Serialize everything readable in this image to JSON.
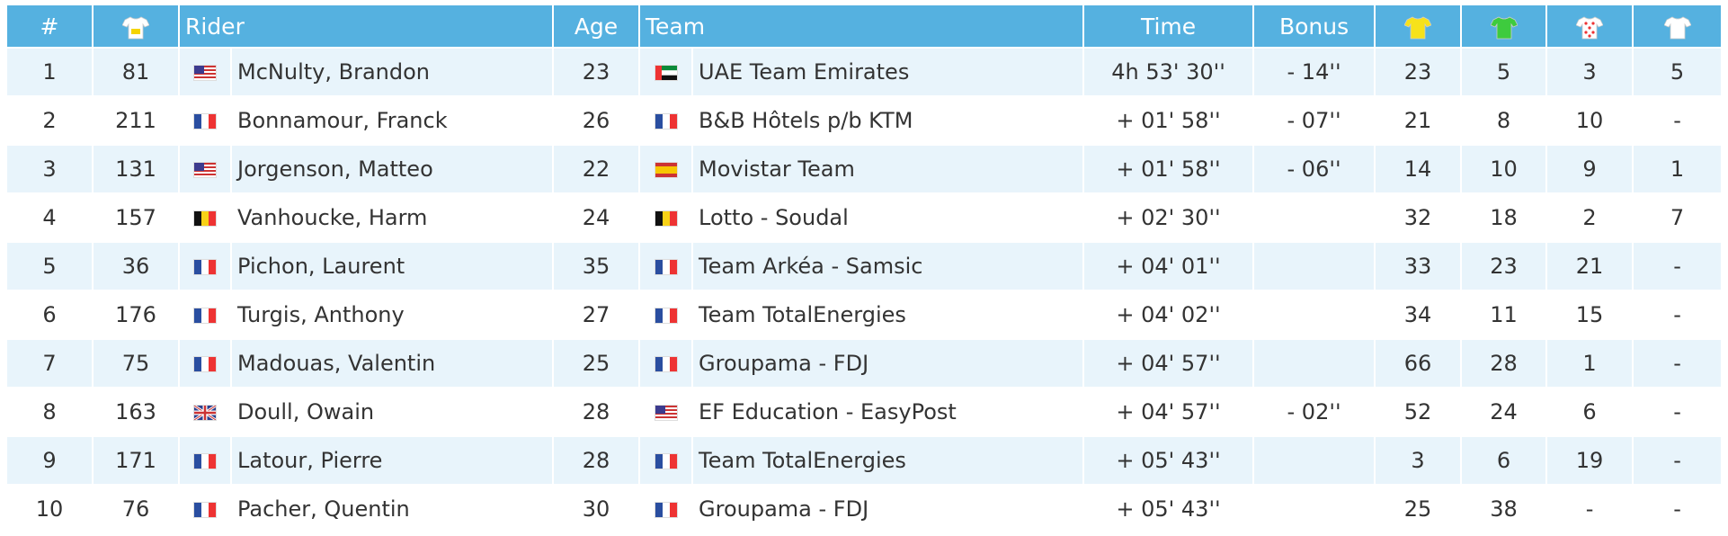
{
  "header": {
    "rank": "#",
    "rider": "Rider",
    "age": "Age",
    "team": "Team",
    "time": "Time",
    "bonus": "Bonus"
  },
  "table": {
    "rows": [
      [
        1,
        81,
        "McNulty, Brandon",
        23,
        "UAE Team Emirates",
        "4h 53' 30''",
        "- 14''",
        23,
        5,
        3,
        5
      ],
      [
        2,
        211,
        "Bonnamour, Franck",
        26,
        "B&B Hôtels p/b KTM",
        "+ 01' 58''",
        "- 07''",
        21,
        8,
        10,
        "-"
      ],
      [
        3,
        131,
        "Jorgenson, Matteo",
        22,
        "Movistar Team",
        "+ 01' 58''",
        "- 06''",
        14,
        10,
        9,
        1
      ],
      [
        4,
        157,
        "Vanhoucke, Harm",
        24,
        "Lotto - Soudal",
        "+ 02' 30''",
        null,
        32,
        18,
        2,
        7
      ],
      [
        5,
        36,
        "Pichon, Laurent",
        35,
        "Team Arkéa - Samsic",
        "+ 04' 01''",
        null,
        33,
        23,
        21,
        "-"
      ],
      [
        6,
        176,
        "Turgis, Anthony",
        27,
        "Team TotalEnergies",
        "+ 04' 02''",
        null,
        34,
        11,
        15,
        "-"
      ],
      [
        7,
        75,
        "Madouas, Valentin",
        25,
        "Groupama - FDJ",
        "+ 04' 57''",
        null,
        66,
        28,
        1,
        "-"
      ],
      [
        8,
        163,
        "Doull, Owain",
        28,
        "EF Education - EasyPost",
        "+ 04' 57''",
        "- 02''",
        52,
        24,
        6,
        "-"
      ],
      [
        9,
        171,
        "Latour, Pierre",
        28,
        "Team TotalEnergies",
        "+ 05' 43''",
        null,
        3,
        6,
        19,
        "-"
      ],
      [
        10,
        76,
        "Pacher, Quentin",
        30,
        "Groupama - FDJ",
        "+ 05' 43''",
        null,
        25,
        38,
        "-",
        "-"
      ]
    ]
  }
}
